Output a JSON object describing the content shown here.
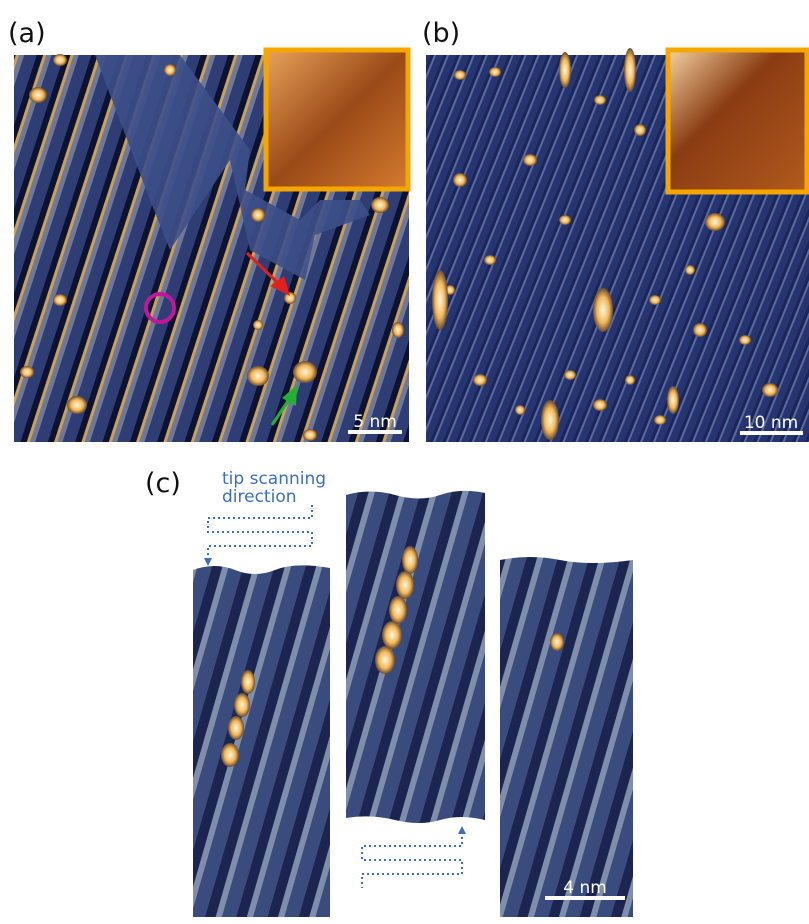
{
  "panels": [
    {
      "label": "(a)",
      "scale_bar": "5 nm"
    },
    {
      "label": "(b)",
      "scale_bar": "10 nm"
    },
    {
      "label": "(c)",
      "scale_bar": "4 nm",
      "annotation": [
        "tip scanning",
        "direction"
      ]
    }
  ]
}
